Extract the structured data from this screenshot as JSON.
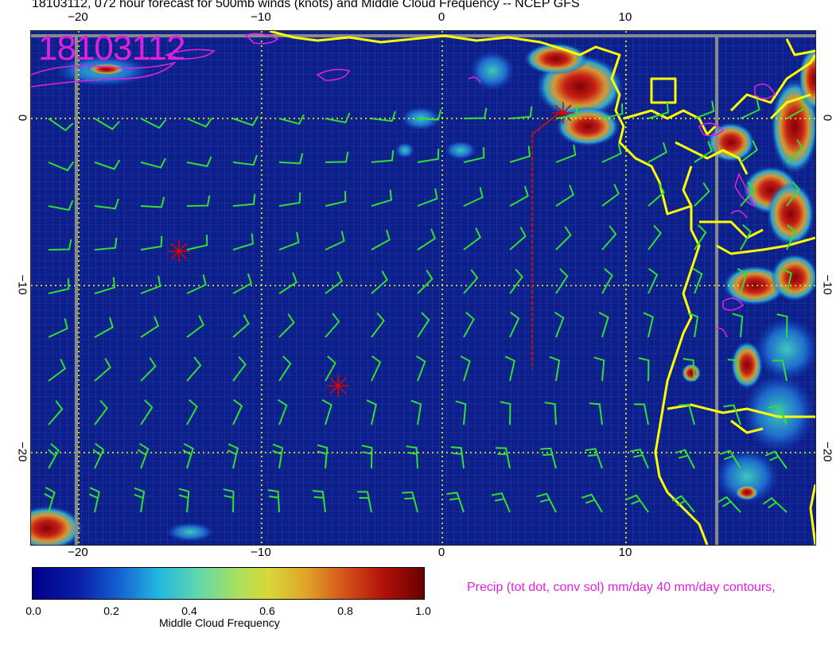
{
  "title": "18103112, 072 hour forecast for 500mb winds (knots) and Middle Cloud Frequency -- NCEP GFS",
  "date_stamp": "18103112",
  "precip_note": "Precip (tot dot, conv sol) mm/day 40 mm/day contours,",
  "axes": {
    "lon_ticks": [
      "−20",
      "−10",
      "0",
      "10"
    ],
    "lat_ticks": [
      "0",
      "−10",
      "−20"
    ]
  },
  "colorbar": {
    "title": "Middle Cloud Frequency",
    "tick_labels": [
      "0.0",
      "0.2",
      "0.4",
      "0.6",
      "0.8",
      "1.0"
    ]
  },
  "colors": {
    "ocean_field": "#0c1f8a",
    "coastline": "#ffff00",
    "wind_barbs": "#30e030",
    "precip_contours": "#e020e0",
    "storm_markers": "#e00000",
    "graticule": "#ffff00"
  },
  "legend_icons": [
    "star-marker-icon",
    "wind-barb-icon"
  ]
}
